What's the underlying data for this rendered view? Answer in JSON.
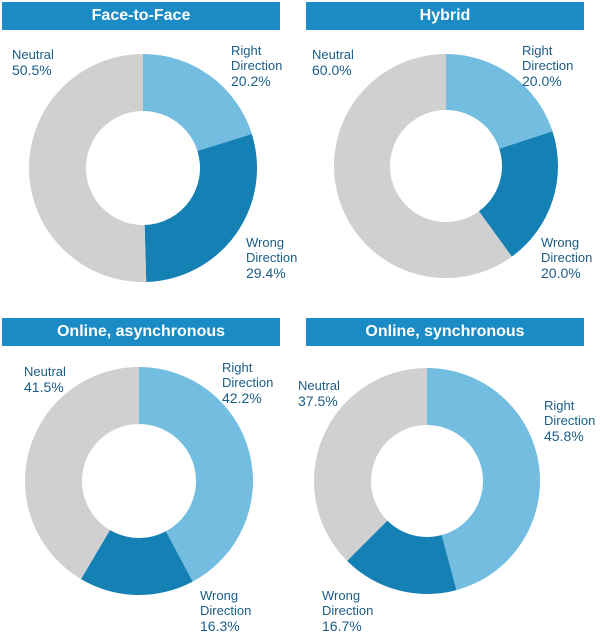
{
  "colors": {
    "title_background": "#1a8bc4",
    "title_text": "#ffffff",
    "right_direction": "#72bde0",
    "wrong_direction": "#1480b4",
    "neutral": "#d0d0d0",
    "label_text": "#1b5d86"
  },
  "chart_data": [
    {
      "type": "pie",
      "donut": true,
      "title": "Face-to-Face",
      "slices": [
        {
          "label": "Right Direction",
          "label_lines": [
            "Right",
            "Direction"
          ],
          "value": 20.2,
          "value_label": "20.2%",
          "color": "#72bde0"
        },
        {
          "label": "Wrong Direction",
          "label_lines": [
            "Wrong",
            "Direction"
          ],
          "value": 29.4,
          "value_label": "29.4%",
          "color": "#1480b4"
        },
        {
          "label": "Neutral",
          "label_lines": [
            "Neutral"
          ],
          "value": 50.5,
          "value_label": "50.5%",
          "color": "#d0d0d0"
        }
      ]
    },
    {
      "type": "pie",
      "donut": true,
      "title": "Hybrid",
      "slices": [
        {
          "label": "Right Direction",
          "label_lines": [
            "Right",
            "Direction"
          ],
          "value": 20.0,
          "value_label": "20.0%",
          "color": "#72bde0"
        },
        {
          "label": "Wrong Direction",
          "label_lines": [
            "Wrong",
            "Direction"
          ],
          "value": 20.0,
          "value_label": "20.0%",
          "color": "#1480b4"
        },
        {
          "label": "Neutral",
          "label_lines": [
            "Neutral"
          ],
          "value": 60.0,
          "value_label": "60.0%",
          "color": "#d0d0d0"
        }
      ]
    },
    {
      "type": "pie",
      "donut": true,
      "title": "Online, asynchronous",
      "slices": [
        {
          "label": "Right Direction",
          "label_lines": [
            "Right",
            "Direction"
          ],
          "value": 42.2,
          "value_label": "42.2%",
          "color": "#72bde0"
        },
        {
          "label": "Wrong Direction",
          "label_lines": [
            "Wrong",
            "Direction"
          ],
          "value": 16.3,
          "value_label": "16.3%",
          "color": "#1480b4"
        },
        {
          "label": "Neutral",
          "label_lines": [
            "Neutral"
          ],
          "value": 41.5,
          "value_label": "41.5%",
          "color": "#d0d0d0"
        }
      ]
    },
    {
      "type": "pie",
      "donut": true,
      "title": "Online, synchronous",
      "slices": [
        {
          "label": "Right Direction",
          "label_lines": [
            "Right",
            "Direction"
          ],
          "value": 45.8,
          "value_label": "45.8%",
          "color": "#72bde0"
        },
        {
          "label": "Wrong Direction",
          "label_lines": [
            "Wrong",
            "Direction"
          ],
          "value": 16.7,
          "value_label": "16.7%",
          "color": "#1480b4"
        },
        {
          "label": "Neutral",
          "label_lines": [
            "Neutral"
          ],
          "value": 37.5,
          "value_label": "37.5%",
          "color": "#d0d0d0"
        }
      ]
    }
  ]
}
